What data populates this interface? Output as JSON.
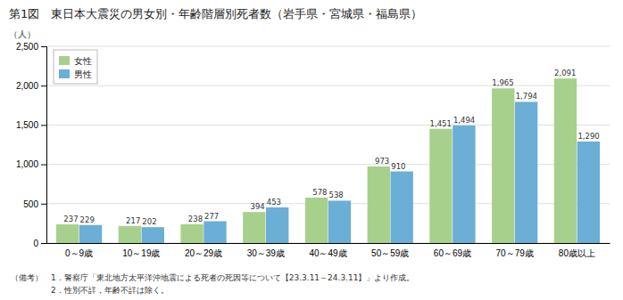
{
  "chart_data": {
    "type": "bar",
    "title": "第1図　東日本大震災の男女別・年齢階層別死者数（岩手県・宮城県・福島県）",
    "ylabel": "（人）",
    "categories": [
      "0～9歳",
      "10～19歳",
      "20～29歳",
      "30～39歳",
      "40～49歳",
      "50～59歳",
      "60～69歳",
      "70～79歳",
      "80歳以上"
    ],
    "series": [
      {
        "name": "女性",
        "color": "#a8d08d",
        "values": [
          237,
          217,
          238,
          394,
          578,
          973,
          1451,
          1965,
          2091
        ],
        "value_labels": [
          "237",
          "217",
          "238",
          "394",
          "578",
          "973",
          "1,451",
          "1,965",
          "2,091"
        ]
      },
      {
        "name": "男性",
        "color": "#6baed6",
        "values": [
          229,
          202,
          277,
          453,
          538,
          910,
          1494,
          1794,
          1290
        ],
        "value_labels": [
          "229",
          "202",
          "277",
          "453",
          "538",
          "910",
          "1,494",
          "1,794",
          "1,290"
        ]
      }
    ],
    "ylim": [
      0,
      2500
    ],
    "yticks": [
      0,
      500,
      {
        "value": 1000,
        "label": "1,000"
      },
      {
        "value": 1500,
        "label": "1,500"
      },
      {
        "value": 2000,
        "label": "2,000"
      },
      {
        "value": 2500,
        "label": "2,500"
      }
    ],
    "grid": true,
    "legend": "upper left",
    "data_labels": true,
    "annotations": [
      "（備考）　1．警察庁「東北地方太平洋沖地震による死者の死因等について【23.3.11～24.3.11】」より作成。",
      "　　　　　2．性別不詳，年齢不詳は除く。"
    ]
  }
}
